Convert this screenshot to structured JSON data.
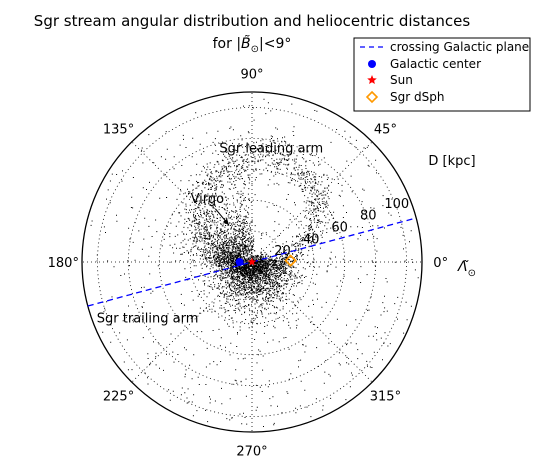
{
  "chart_data": {
    "type": "scatter",
    "projection": "polar",
    "title": "Sgr stream angular distribution and heliocentric distances",
    "subtitle_prefix": "for ",
    "subtitle_symbol": "|B̃",
    "subtitle_subscript": "⊙",
    "subtitle_suffix": "|<9°",
    "radial_label": "D [kpc]",
    "angular_label_symbol": "Λ̃",
    "angular_label_subscript": "⊙",
    "rlim": [
      0,
      110
    ],
    "radial_ticks": [
      "20",
      "40",
      "60",
      "80",
      "100"
    ],
    "radial_tick_values": [
      20,
      40,
      60,
      80,
      100
    ],
    "angle_ticks": [
      "0°",
      "45°",
      "90°",
      "135°",
      "180°",
      "225°",
      "270°",
      "315°"
    ],
    "angle_tick_values": [
      0,
      45,
      90,
      135,
      180,
      225,
      270,
      315
    ],
    "grid": true,
    "legend_position": "top-right",
    "legend": [
      {
        "label": "crossing Galactic plane",
        "marker": "dashed-line",
        "color": "#0000ff"
      },
      {
        "label": "Galactic center",
        "marker": "circle",
        "color": "#0000ff"
      },
      {
        "label": "Sun",
        "marker": "star",
        "color": "#ff0000"
      },
      {
        "label": "Sgr dSph",
        "marker": "diamond",
        "color": "#ff9900"
      }
    ],
    "galactic_plane_angles": [
      15,
      195
    ],
    "galactic_center": {
      "angle": 180,
      "r": 8
    },
    "sun": {
      "angle": 0,
      "r": 0
    },
    "sgr_dsph": {
      "angle": 2,
      "r": 25
    },
    "annotations": [
      {
        "text": "Sgr leading arm",
        "angle": 80,
        "r": 72
      },
      {
        "text": "Virgo",
        "angle": 127,
        "r": 48,
        "arrow_to": {
          "angle": 122,
          "r": 28
        }
      },
      {
        "text": "Sgr trailing arm",
        "angle": 210,
        "r": 78
      }
    ]
  }
}
